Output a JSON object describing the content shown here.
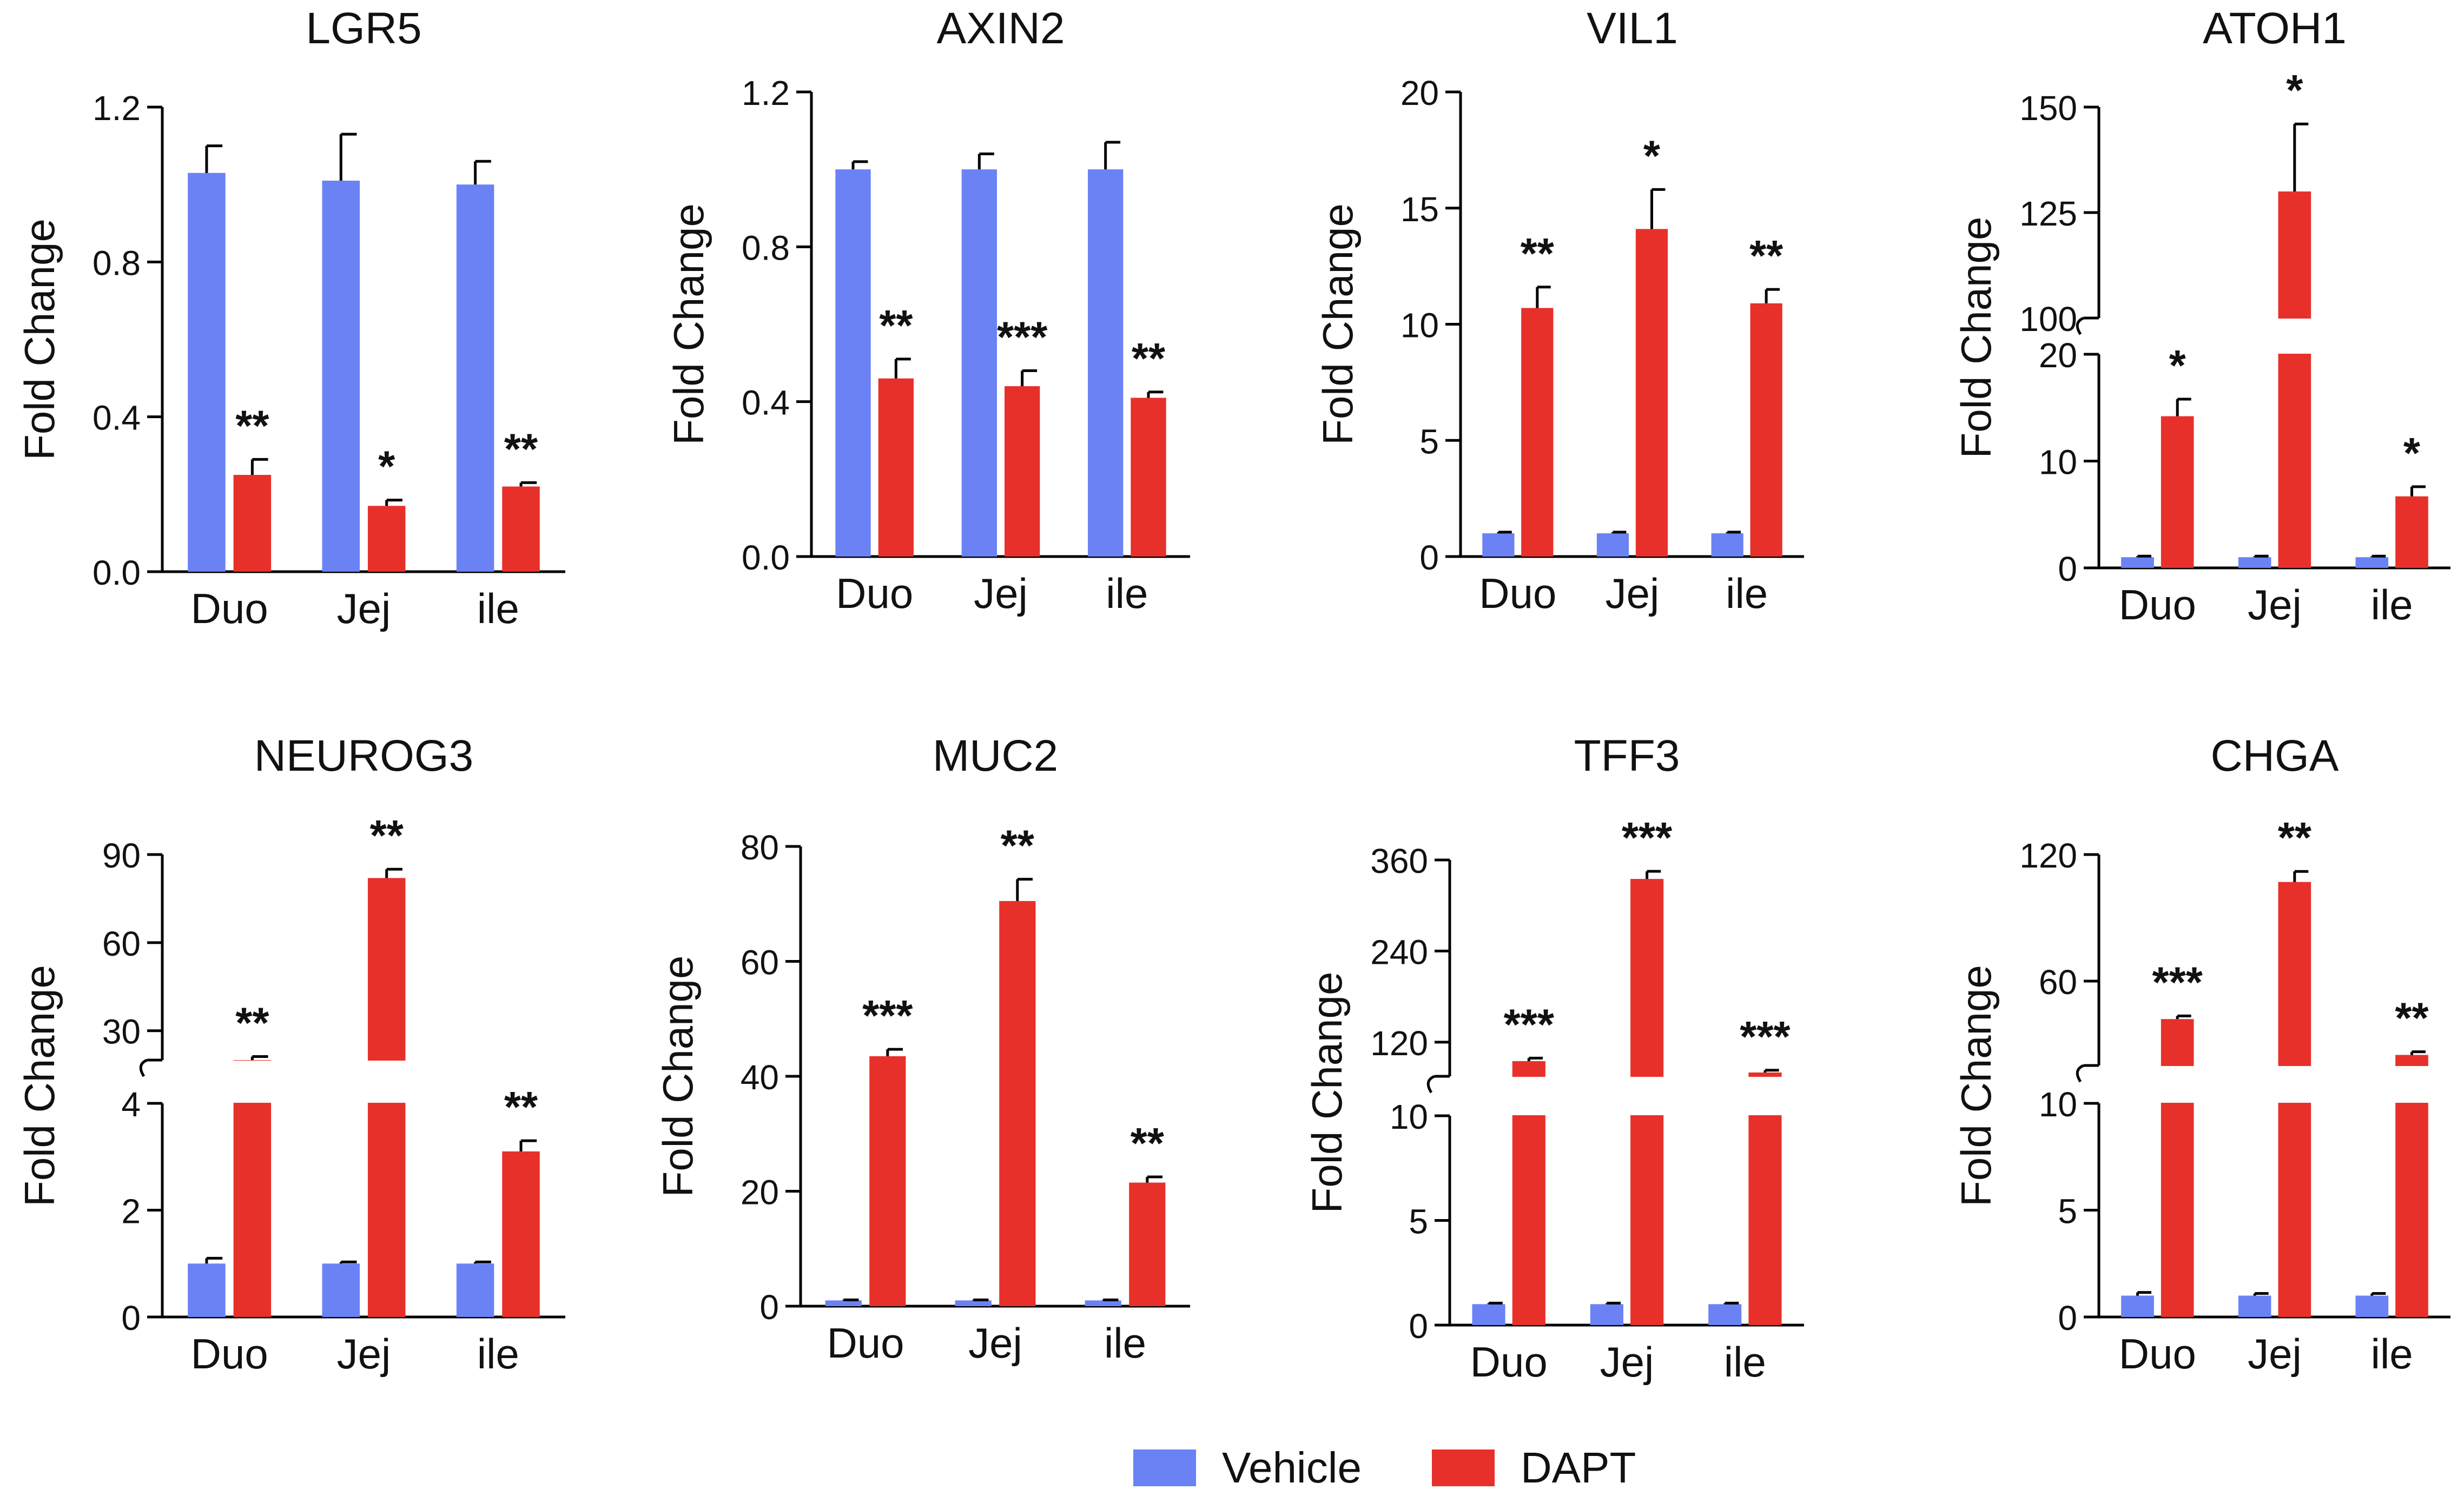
{
  "colors": {
    "vehicle": "#6b82f5",
    "dapt": "#e8302a",
    "axis": "#000000"
  },
  "legend": {
    "vehicle": "Vehicle",
    "dapt": "DAPT"
  },
  "chart_data": [
    {
      "type": "bar",
      "title": "LGR5",
      "ylabel": "Fold Change",
      "categories": [
        "Duo",
        "Jej",
        "ile"
      ],
      "ylim": [
        0,
        1.2
      ],
      "ticks": [
        "0.0",
        "0.4",
        "0.8",
        "1.2"
      ],
      "series": [
        {
          "name": "Vehicle",
          "values": [
            1.03,
            1.01,
            1.0
          ],
          "errors": [
            0.07,
            0.12,
            0.06
          ]
        },
        {
          "name": "DAPT",
          "values": [
            0.25,
            0.17,
            0.22
          ],
          "errors": [
            0.04,
            0.015,
            0.01
          ]
        }
      ],
      "significance": [
        "**",
        "*",
        "**"
      ]
    },
    {
      "type": "bar",
      "title": "AXIN2",
      "ylabel": "Fold Change",
      "categories": [
        "Duo",
        "Jej",
        "ile"
      ],
      "ylim": [
        0,
        1.2
      ],
      "ticks": [
        "0.0",
        "0.4",
        "0.8",
        "1.2"
      ],
      "series": [
        {
          "name": "Vehicle",
          "values": [
            1.0,
            1.0,
            1.0
          ],
          "errors": [
            0.02,
            0.04,
            0.07
          ]
        },
        {
          "name": "DAPT",
          "values": [
            0.46,
            0.44,
            0.41
          ],
          "errors": [
            0.05,
            0.04,
            0.015
          ]
        }
      ],
      "significance": [
        "**",
        "***",
        "**"
      ]
    },
    {
      "type": "bar",
      "title": "VIL1",
      "ylabel": "Fold Change",
      "categories": [
        "Duo",
        "Jej",
        "ile"
      ],
      "ylim": [
        0,
        20
      ],
      "ticks": [
        "0",
        "5",
        "10",
        "15",
        "20"
      ],
      "series": [
        {
          "name": "Vehicle",
          "values": [
            1.0,
            1.0,
            1.0
          ],
          "errors": [
            0.05,
            0.05,
            0.05
          ]
        },
        {
          "name": "DAPT",
          "values": [
            10.7,
            14.1,
            10.9
          ],
          "errors": [
            0.9,
            1.7,
            0.6
          ]
        }
      ],
      "significance": [
        "**",
        "*",
        "**"
      ]
    },
    {
      "type": "bar",
      "title": "ATOH1",
      "ylabel": "Fold Change",
      "categories": [
        "Duo",
        "Jej",
        "ile"
      ],
      "broken_axis": {
        "lower": [
          0,
          20
        ],
        "upper": [
          100,
          150
        ]
      },
      "ticks_lower": [
        "0",
        "10",
        "20"
      ],
      "ticks_upper": [
        "100",
        "125",
        "150"
      ],
      "series": [
        {
          "name": "Vehicle",
          "values": [
            1.0,
            1.0,
            1.0
          ],
          "errors": [
            0.1,
            0.1,
            0.1
          ]
        },
        {
          "name": "DAPT",
          "values": [
            14.2,
            130,
            6.7
          ],
          "errors": [
            1.6,
            16,
            0.9
          ]
        }
      ],
      "significance": [
        "*",
        "*",
        "*"
      ]
    },
    {
      "type": "bar",
      "title": "NEUROG3",
      "ylabel": "Fold Change",
      "categories": [
        "Duo",
        "Jej",
        "ile"
      ],
      "broken_axis": {
        "lower": [
          0,
          4
        ],
        "upper": [
          20,
          90
        ]
      },
      "ticks_lower": [
        "0",
        "2",
        "4"
      ],
      "ticks_upper": [
        "30",
        "60",
        "90"
      ],
      "series": [
        {
          "name": "Vehicle",
          "values": [
            1.0,
            1.0,
            1.0
          ],
          "errors": [
            0.1,
            0.03,
            0.03
          ]
        },
        {
          "name": "DAPT",
          "values": [
            20,
            82,
            3.1
          ],
          "errors": [
            1.2,
            3,
            0.2
          ]
        }
      ],
      "significance": [
        "**",
        "**",
        "**"
      ]
    },
    {
      "type": "bar",
      "title": "MUC2",
      "ylabel": "Fold Change",
      "categories": [
        "Duo",
        "Jej",
        "ile"
      ],
      "ylim": [
        0,
        80
      ],
      "ticks": [
        "0",
        "20",
        "40",
        "60",
        "80"
      ],
      "series": [
        {
          "name": "Vehicle",
          "values": [
            1.0,
            1.0,
            1.0
          ],
          "errors": [
            0.1,
            0.1,
            0.1
          ]
        },
        {
          "name": "DAPT",
          "values": [
            43.5,
            70.5,
            21.5
          ],
          "errors": [
            1.2,
            3.8,
            1.0
          ]
        }
      ],
      "significance": [
        "***",
        "**",
        "**"
      ]
    },
    {
      "type": "bar",
      "title": "TFF3",
      "ylabel": "Fold Change",
      "categories": [
        "Duo",
        "Jej",
        "ile"
      ],
      "broken_axis": {
        "lower": [
          0,
          10
        ],
        "upper": [
          75,
          360
        ]
      },
      "ticks_lower": [
        "0",
        "5",
        "10"
      ],
      "ticks_upper": [
        "120",
        "240",
        "360"
      ],
      "series": [
        {
          "name": "Vehicle",
          "values": [
            1.0,
            1.0,
            1.0
          ],
          "errors": [
            0.05,
            0.05,
            0.05
          ]
        },
        {
          "name": "DAPT",
          "values": [
            95,
            335,
            80
          ],
          "errors": [
            4,
            10,
            3
          ]
        }
      ],
      "significance": [
        "***",
        "***",
        "***"
      ]
    },
    {
      "type": "bar",
      "title": "CHGA",
      "ylabel": "Fold Change",
      "categories": [
        "Duo",
        "Jej",
        "ile"
      ],
      "broken_axis": {
        "lower": [
          0,
          10
        ],
        "upper": [
          20,
          120
        ]
      },
      "ticks_lower": [
        "0",
        "5",
        "10"
      ],
      "ticks_upper": [
        "60",
        "120"
      ],
      "series": [
        {
          "name": "Vehicle",
          "values": [
            1.0,
            1.0,
            1.0
          ],
          "errors": [
            0.15,
            0.1,
            0.1
          ]
        },
        {
          "name": "DAPT",
          "values": [
            42,
            107,
            25
          ],
          "errors": [
            1.5,
            5,
            1.5
          ]
        }
      ],
      "significance": [
        "***",
        "**",
        "**"
      ]
    }
  ]
}
